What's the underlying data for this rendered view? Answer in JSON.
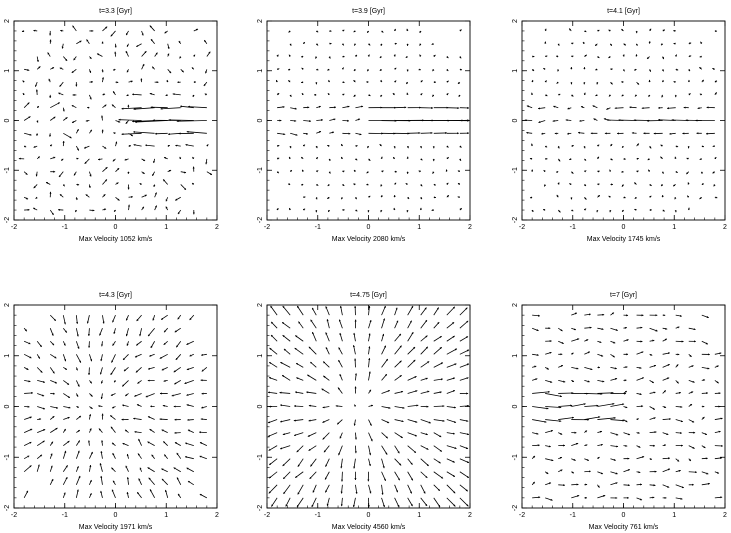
{
  "chart_data": [
    {
      "type": "vector-field",
      "title": "t=3.3 [Gyr]",
      "xlabel": "Max Velocity   1052 km/s",
      "xlim": [
        -2,
        2
      ],
      "ylim": [
        -2,
        2
      ],
      "xticks": [
        "-2",
        "-1",
        "0",
        "1",
        "2"
      ],
      "yticks": [
        "-2",
        "-1",
        "0",
        "1",
        "2"
      ],
      "max_velocity_kms": 1052,
      "flow": "chaotic field with strong rightward jet along y=0 for x>0.5"
    },
    {
      "type": "vector-field",
      "title": "t=3.9 [Gyr]",
      "xlabel": "Max Velocity   2080 km/s",
      "xlim": [
        -2,
        2
      ],
      "ylim": [
        -2,
        2
      ],
      "xticks": [
        "-2",
        "-1",
        "0",
        "1",
        "2"
      ],
      "yticks": [
        "-2",
        "-1",
        "0",
        "1",
        "2"
      ],
      "max_velocity_kms": 2080,
      "flow": "strong rightward jet along y=0 for x>0"
    },
    {
      "type": "vector-field",
      "title": "t=4.1 [Gyr]",
      "xlabel": "Max Velocity   1745 km/s",
      "xlim": [
        -2,
        2
      ],
      "ylim": [
        -2,
        2
      ],
      "xticks": [
        "-2",
        "-1",
        "0",
        "1",
        "2"
      ],
      "yticks": [
        "-2",
        "-1",
        "0",
        "1",
        "2"
      ],
      "max_velocity_kms": 1745,
      "flow": "leftward jet along y=0 for x>0"
    },
    {
      "type": "vector-field",
      "title": "t=4.3 [Gyr]",
      "xlabel": "Max Velocity   1971 km/s",
      "xlim": [
        -2,
        2
      ],
      "ylim": [
        -2,
        2
      ],
      "xticks": [
        "-2",
        "-1",
        "0",
        "1",
        "2"
      ],
      "yticks": [
        "-2",
        "-1",
        "0",
        "1",
        "2"
      ],
      "max_velocity_kms": 1971,
      "flow": "converging flow toward the centre"
    },
    {
      "type": "vector-field",
      "title": "t=4.75 [Gyr]",
      "xlabel": "Max Velocity   4560 km/s",
      "xlim": [
        -2,
        2
      ],
      "ylim": [
        -2,
        2
      ],
      "xticks": [
        "-2",
        "-1",
        "0",
        "1",
        "2"
      ],
      "yticks": [
        "-2",
        "-1",
        "0",
        "1",
        "2"
      ],
      "max_velocity_kms": 4560,
      "flow": "radially diverging flow from the centre"
    },
    {
      "type": "vector-field",
      "title": "t=7 [Gyr]",
      "xlabel": "Max Velocity   761 km/s",
      "xlim": [
        -2,
        2
      ],
      "ylim": [
        -2,
        2
      ],
      "xticks": [
        "-2",
        "-1",
        "0",
        "1",
        "2"
      ],
      "yticks": [
        "-2",
        "-1",
        "0",
        "1",
        "2"
      ],
      "max_velocity_kms": 761,
      "flow": "weak residual flow with mild rightward motion near y=0"
    }
  ]
}
